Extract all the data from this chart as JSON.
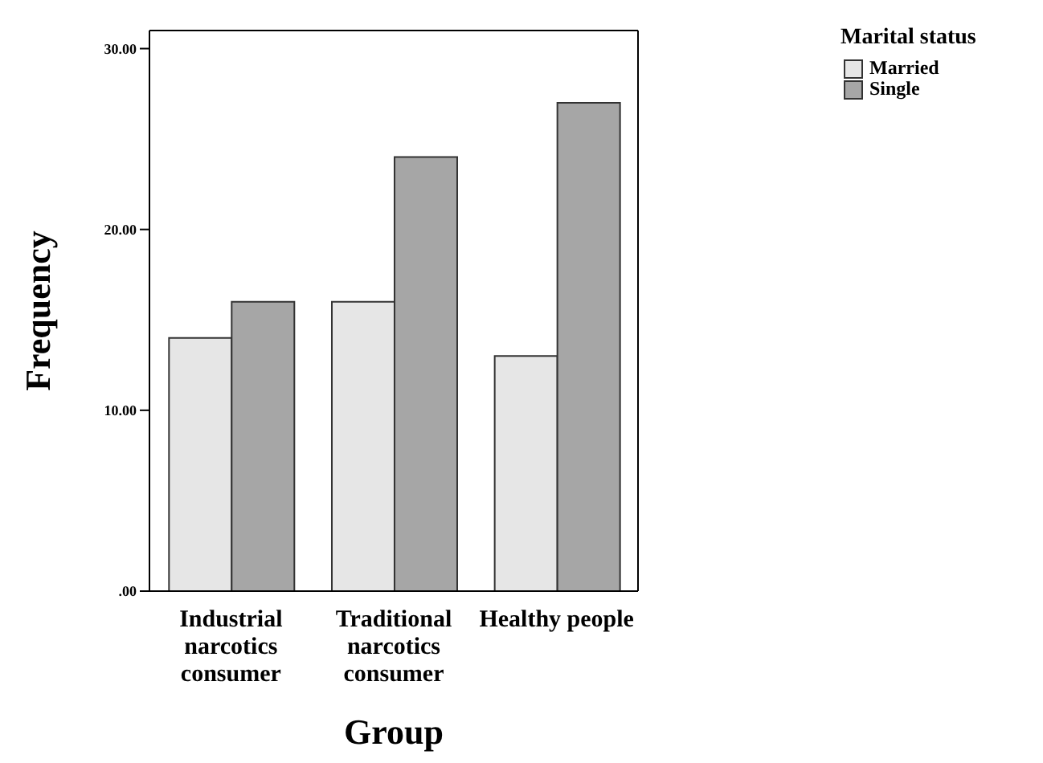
{
  "chart_data": {
    "type": "bar",
    "xlabel": "Group",
    "ylabel": "Frequency",
    "legend_title": "Marital status",
    "legend": "top right",
    "categories": [
      "Industrial narcotics consumer",
      "Traditional narcotics consumer",
      "Healthy people"
    ],
    "series": [
      {
        "name": "Married",
        "color": "#e6e6e6",
        "values": [
          14,
          16,
          13
        ]
      },
      {
        "name": "Single",
        "color": "#a6a6a6",
        "values": [
          16,
          24,
          27
        ]
      }
    ],
    "ylim": [
      0,
      31
    ],
    "yticks": [
      {
        "value": 0,
        "label": ".00"
      },
      {
        "value": 10,
        "label": "10.00"
      },
      {
        "value": 20,
        "label": "20.00"
      },
      {
        "value": 30,
        "label": "30.00"
      }
    ],
    "grid": false
  }
}
